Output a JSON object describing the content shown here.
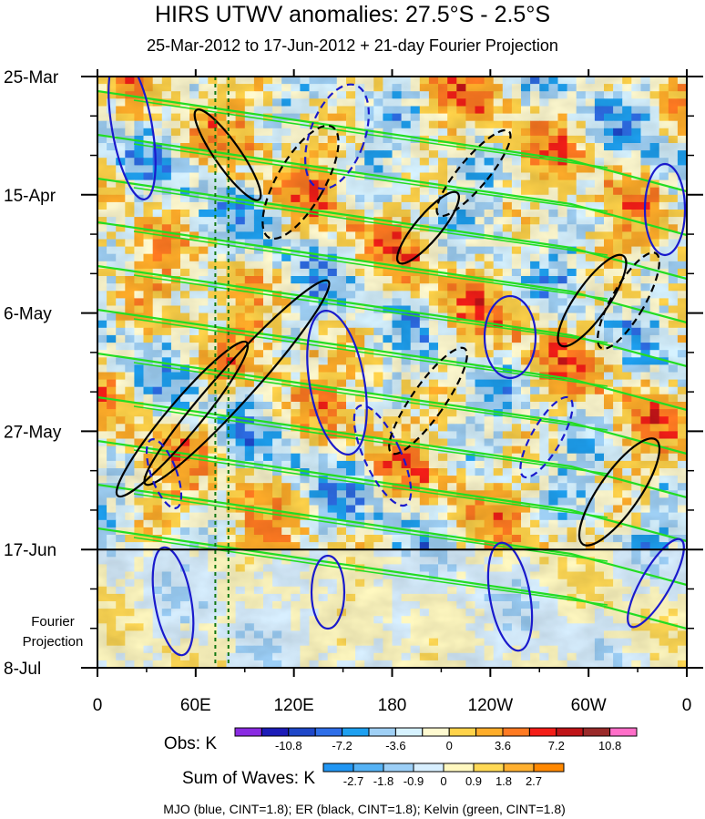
{
  "chart_data": {
    "type": "heatmap",
    "title": "HIRS UTWV anomalies: 27.5°S - 2.5°S",
    "subtitle": "25-Mar-2012 to 17-Jun-2012 + 21-day Fourier Projection",
    "x_ticks": [
      "0",
      "60E",
      "120E",
      "180",
      "120W",
      "60W",
      "0"
    ],
    "x_tick_positions_deg": [
      0,
      60,
      120,
      180,
      240,
      300,
      360
    ],
    "xlim": [
      0,
      360
    ],
    "y_ticks": [
      "25-Mar",
      "15-Apr",
      "6-May",
      "27-May",
      "17-Jun",
      "8-Jul"
    ],
    "y_tick_days": [
      0,
      21,
      42,
      63,
      84,
      105
    ],
    "ylim": [
      0,
      105
    ],
    "projection_start_day": 84,
    "projection_label": [
      "Fourier",
      "Projection"
    ],
    "obs_colorbar": {
      "label": "Obs: K",
      "ticks": [
        "-10.8",
        "-7.2",
        "-3.6",
        "0",
        "3.6",
        "7.2",
        "10.8"
      ],
      "colors": [
        "#8a2be2",
        "#1c1cb8",
        "#1e47c8",
        "#2e6ee8",
        "#1ea0f0",
        "#9fd0f5",
        "#d6f2ff",
        "#fffad0",
        "#ffd34a",
        "#ffad2a",
        "#ff7a22",
        "#f41e18",
        "#c01418",
        "#9a2a2a",
        "#ff6ec8"
      ]
    },
    "waves_colorbar": {
      "label": "Sum of Waves: K",
      "ticks": [
        "-2.7",
        "-1.8",
        "-0.9",
        "0",
        "0.9",
        "1.8",
        "2.7"
      ],
      "colors": [
        "#2196f3",
        "#55b2f5",
        "#9ccff7",
        "#d8efff",
        "#fff8c0",
        "#ffd955",
        "#ffb030",
        "#ff8800"
      ]
    },
    "legend_text": "MJO (blue, CINT=1.8); ER (black, CINT=1.8); Kelvin (green, CINT=1.8)",
    "reference_lines_lon": [
      72,
      80
    ],
    "colors": {
      "mjo": "#1a1acc",
      "er": "#000000",
      "kelvin": "#22dd22",
      "reference": "#117711"
    }
  }
}
